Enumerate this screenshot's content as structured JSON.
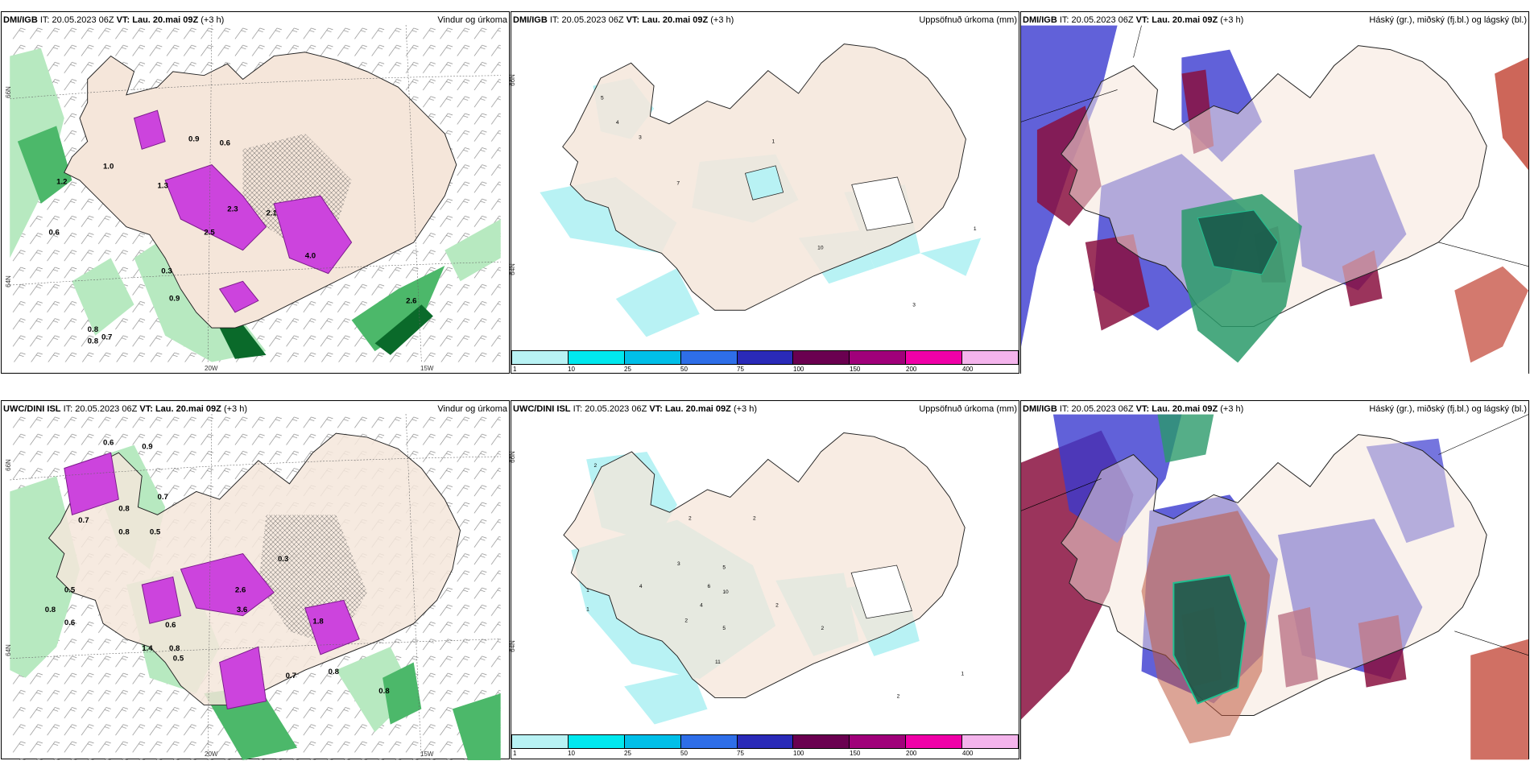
{
  "colors": {
    "land": "#f5e6da",
    "precip_light": "#b7e9c0",
    "precip_mid": "#4cb86a",
    "precip_dark": "#0a6a2a",
    "precip_heavy": "#cc44dd",
    "accum_fill": "#b8f2f4",
    "cloud_high": "#2a9a6a",
    "cloud_mid": "#3a3ad0",
    "cloud_low": "#8a1040"
  },
  "rows": [
    {
      "panels": [
        {
          "model": "DMI/IGB",
          "it_label": "IT:",
          "it": "20.05.2023 06Z",
          "vt_label": "VT:",
          "vt": "Lau. 20.mai 09Z",
          "lead": "(+3 h)",
          "title": "Vindur og úrkoma"
        },
        {
          "model": "DMI/IGB",
          "it_label": "IT:",
          "it": "20.05.2023 06Z",
          "vt_label": "VT:",
          "vt": "Lau. 20.mai 09Z",
          "lead": "(+3 h)",
          "title": "Uppsöfnuð úrkoma (mm)"
        },
        {
          "model": "DMI/IGB",
          "it_label": "IT:",
          "it": "20.05.2023 06Z",
          "vt_label": "VT:",
          "vt": "Lau. 20.mai 09Z",
          "lead": "(+3 h)",
          "title": "Háský (gr.), miðský (fj.bl.) og lágský (bl.)"
        }
      ]
    },
    {
      "panels": [
        {
          "model": "UWC/DINI ISL",
          "it_label": "IT:",
          "it": "20.05.2023 06Z",
          "vt_label": "VT:",
          "vt": "Lau. 20.mai 09Z",
          "lead": "(+3 h)",
          "title": "Vindur og úrkoma"
        },
        {
          "model": "UWC/DINI ISL",
          "it_label": "IT:",
          "it": "20.05.2023 06Z",
          "vt_label": "VT:",
          "vt": "Lau. 20.mai 09Z",
          "lead": "(+3 h)",
          "title": "Uppsöfnuð úrkoma (mm)"
        },
        {
          "model": "DMI/IGB",
          "it_label": "IT:",
          "it": "20.05.2023 06Z",
          "vt_label": "VT:",
          "vt": "Lau. 20.mai 09Z",
          "lead": "(+3 h)",
          "title": "Háský (gr.), miðský (fj.bl.) og lágský (bl.)"
        }
      ]
    }
  ],
  "axis": {
    "lat66": "66N",
    "lat64": "64N",
    "lon20": "20W",
    "lon15": "15W"
  },
  "colorbar": {
    "colors": [
      "#b8f2f4",
      "#00e8ee",
      "#00bfe8",
      "#2e6ee8",
      "#2a2ab8",
      "#6a0050",
      "#a0007a",
      "#f000a8",
      "#f4b4ec"
    ],
    "ticks": [
      "1",
      "10",
      "25",
      "50",
      "75",
      "100",
      "150",
      "200",
      "400"
    ]
  },
  "labels_wind_top": [
    "0.8",
    "0.9",
    "1.0",
    "1.2",
    "1.3",
    "0.6",
    "2.3",
    "2.5",
    "2.1",
    "4.0",
    "0.3",
    "0.9",
    "0.8",
    "0.7",
    "2.6",
    "0.6"
  ],
  "labels_wind_bottom": [
    "0.6",
    "0.9",
    "0.7",
    "0.8",
    "0.5",
    "0.7",
    "0.8",
    "0.8",
    "0.5",
    "0.6",
    "1.4",
    "0.6",
    "0.8",
    "0.5",
    "0.7",
    "0.8",
    "0.3",
    "2.6",
    "3.6",
    "0.8",
    "1.8"
  ],
  "labels_acc_top": [
    "5",
    "4",
    "3",
    "7",
    "1",
    "1",
    "10",
    "3"
  ],
  "labels_acc_bottom": [
    "2",
    "1",
    "2",
    "2",
    "4",
    "3",
    "5",
    "6",
    "10",
    "4",
    "2",
    "2",
    "5",
    "11",
    "2",
    "1",
    "1",
    "2"
  ]
}
